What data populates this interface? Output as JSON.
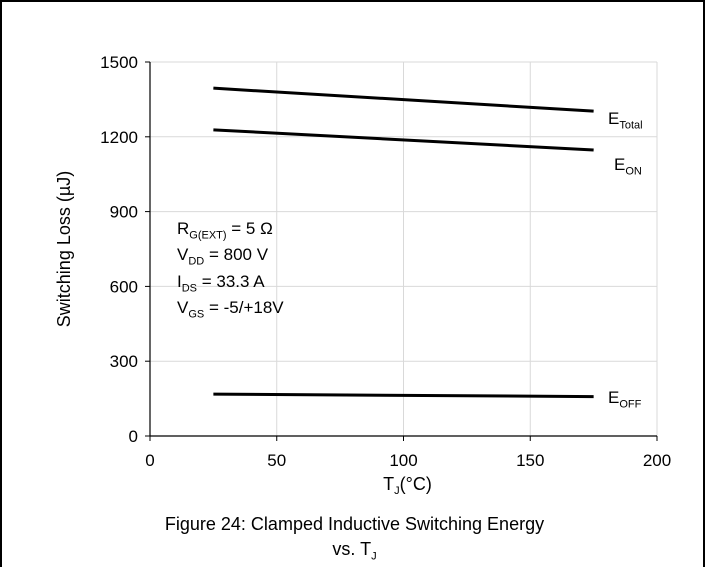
{
  "chart_data": {
    "type": "line",
    "caption": {
      "line1": "Figure 24: Clamped Inductive Switching Energy",
      "line2_prefix": "vs. T",
      "line2_sub": "J"
    },
    "ylabel": "Switching Loss (µJ)",
    "xlabel": {
      "prefix": "T",
      "sub": "J",
      "suffix": "(°C)"
    },
    "xlim": [
      0,
      200
    ],
    "ylim": [
      0,
      1500
    ],
    "xticks": [
      0,
      50,
      100,
      150,
      200
    ],
    "yticks": [
      0,
      300,
      600,
      900,
      1200,
      1500
    ],
    "grid": true,
    "series": [
      {
        "name": {
          "main": "E",
          "sub": "Total"
        },
        "x": [
          25,
          175
        ],
        "y": [
          1395,
          1303
        ]
      },
      {
        "name": {
          "main": "E",
          "sub": "ON"
        },
        "x": [
          25,
          175
        ],
        "y": [
          1228,
          1147
        ]
      },
      {
        "name": {
          "main": "E",
          "sub": "OFF"
        },
        "x": [
          25,
          175
        ],
        "y": [
          168,
          158
        ]
      }
    ],
    "conditions": [
      {
        "main": "R",
        "sub": "G(EXT)",
        "rest": " = 5 Ω"
      },
      {
        "main": "V",
        "sub": "DD",
        "rest": " = 800 V"
      },
      {
        "main": "I",
        "sub": "DS",
        "rest": " = 33.3 A"
      },
      {
        "main": "V",
        "sub": "GS",
        "rest": " = -5/+18V"
      }
    ],
    "colors": {
      "line": "#000000",
      "grid": "#d9d9d9"
    }
  }
}
